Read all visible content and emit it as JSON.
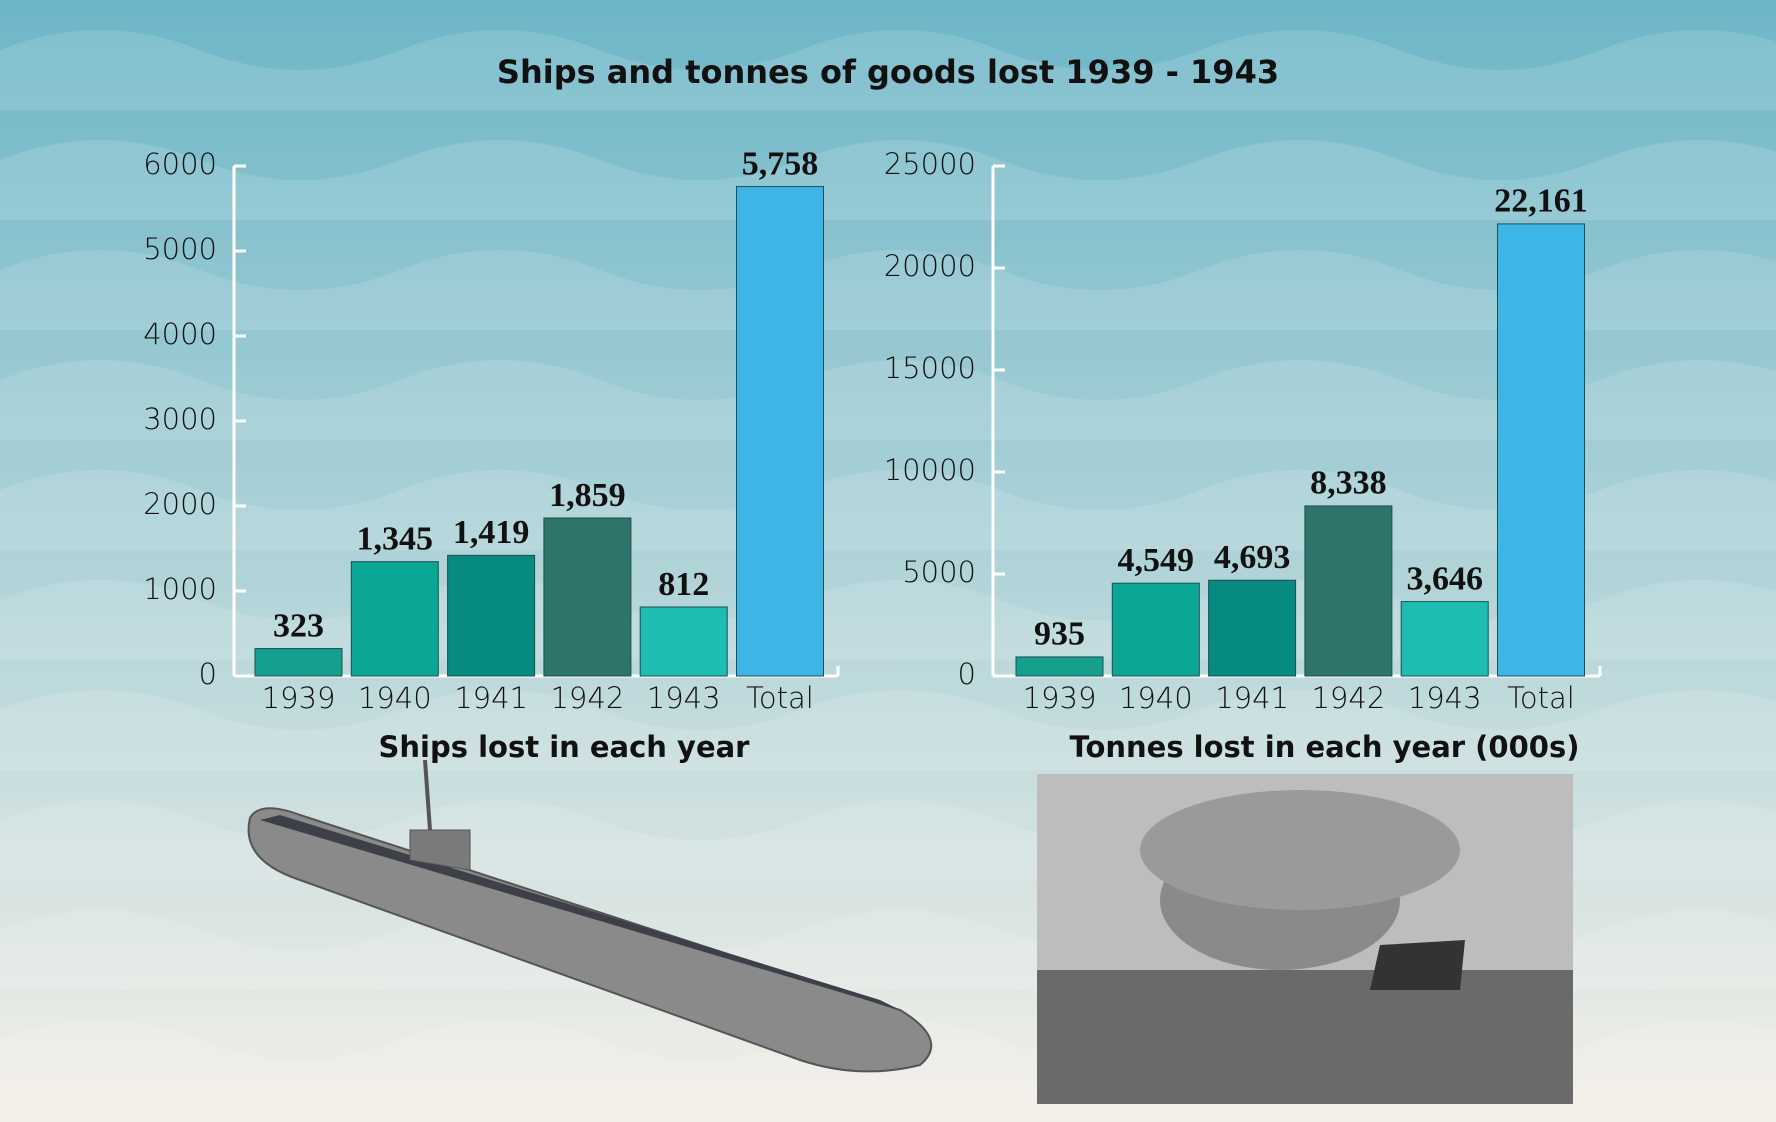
{
  "title": "Ships and tonnes of goods lost 1939 - 1943",
  "chart_data": [
    {
      "type": "bar",
      "x_label": "Ships lost in each year",
      "categories": [
        "1939",
        "1940",
        "1941",
        "1942",
        "1943",
        "Total"
      ],
      "values": [
        323,
        1345,
        1419,
        1859,
        812,
        5758
      ],
      "value_labels": [
        "323",
        "1,345",
        "1,419",
        "1,859",
        "812",
        "5,758"
      ],
      "colors": [
        "#14a08c",
        "#0ba795",
        "#078a80",
        "#2e7469",
        "#1ebdb1",
        "#3db5e7"
      ],
      "ylim": [
        0,
        6000
      ],
      "yticks": [
        0,
        1000,
        2000,
        3000,
        4000,
        5000,
        6000
      ],
      "grid": false
    },
    {
      "type": "bar",
      "x_label": "Tonnes lost in each year (000s)",
      "categories": [
        "1939",
        "1940",
        "1941",
        "1942",
        "1943",
        "Total"
      ],
      "values": [
        935,
        4549,
        4693,
        8338,
        3646,
        22161
      ],
      "value_labels": [
        "935",
        "4,549",
        "4,693",
        "8,338",
        "3,646",
        "22,161"
      ],
      "colors": [
        "#14a08c",
        "#0ba795",
        "#078a80",
        "#2e7469",
        "#1ebdb1",
        "#3db5e7"
      ],
      "ylim": [
        0,
        25000
      ],
      "yticks": [
        0,
        5000,
        10000,
        15000,
        20000,
        25000
      ],
      "grid": false
    }
  ]
}
